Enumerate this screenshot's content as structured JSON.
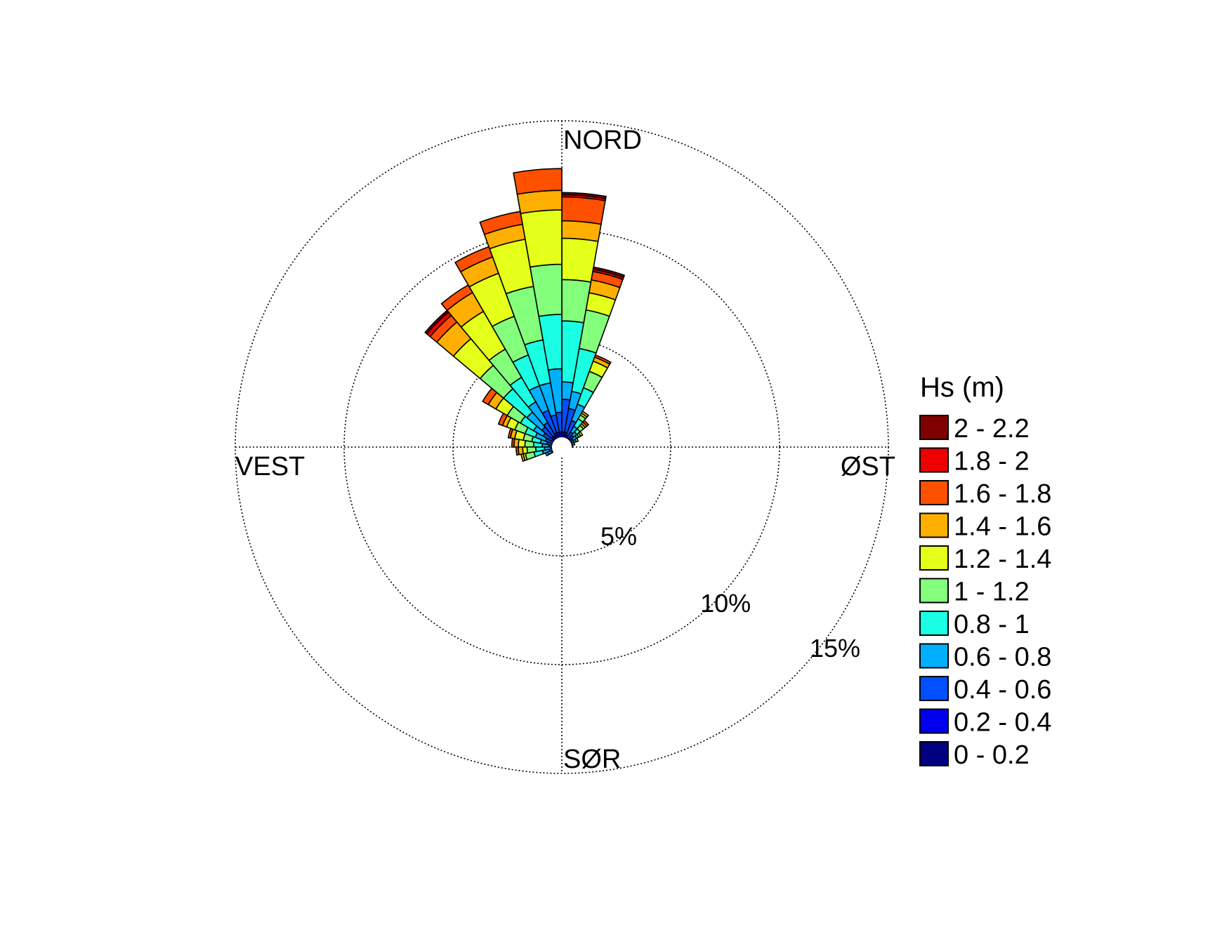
{
  "chart_data": {
    "type": "polar-stacked-bar",
    "compass": {
      "north": "NORD",
      "east": "ØST",
      "south": "SØR",
      "west": "VEST"
    },
    "rings": [
      {
        "value": 5,
        "label": "5%"
      },
      {
        "value": 10,
        "label": "10%"
      },
      {
        "value": 15,
        "label": "15%"
      }
    ],
    "rlim": [
      0,
      15
    ],
    "legend": {
      "title": "Hs (m)",
      "placement": "right",
      "items": [
        {
          "label": "2 - 2.2",
          "color": "#800000"
        },
        {
          "label": "1.8 - 2",
          "color": "#ee0000"
        },
        {
          "label": "1.6 - 1.8",
          "color": "#ff5000"
        },
        {
          "label": "1.4 - 1.6",
          "color": "#ffaf00"
        },
        {
          "label": "1.2 - 1.4",
          "color": "#e4ff1a"
        },
        {
          "label": "1 - 1.2",
          "color": "#83ff7b"
        },
        {
          "label": "0.8 - 1",
          "color": "#1affe4"
        },
        {
          "label": "0.6 - 0.8",
          "color": "#00b0ff"
        },
        {
          "label": "0.4 - 0.6",
          "color": "#0050ff"
        },
        {
          "label": "0.2 - 0.4",
          "color": "#0000ee"
        },
        {
          "label": "0 - 0.2",
          "color": "#000080"
        }
      ]
    },
    "bin_width_deg": 10,
    "series_order_note_removed": "",
    "sectors": [
      {
        "direction_deg": 5,
        "cumulative_pct": [
          0.3,
          0.7,
          2.2,
          3.0,
          5.8,
          7.7,
          9.6,
          10.4,
          11.5,
          11.6,
          11.7
        ]
      },
      {
        "direction_deg": 355,
        "cumulative_pct": [
          0.3,
          0.7,
          1.6,
          3.6,
          6.1,
          8.4,
          10.9,
          11.8,
          12.8,
          12.8,
          12.8
        ]
      },
      {
        "direction_deg": 345,
        "cumulative_pct": [
          0.3,
          0.7,
          1.5,
          3.0,
          5.0,
          7.5,
          9.7,
          10.4,
          11.0,
          11.0,
          11.0
        ]
      },
      {
        "direction_deg": 335,
        "cumulative_pct": [
          0.3,
          0.7,
          1.8,
          3.0,
          4.5,
          6.4,
          8.5,
          9.3,
          9.8,
          9.8,
          9.8
        ]
      },
      {
        "direction_deg": 325,
        "cumulative_pct": [
          0.3,
          0.6,
          1.3,
          2.4,
          3.7,
          5.2,
          7.2,
          8.2,
          8.6,
          8.6,
          8.6
        ]
      },
      {
        "direction_deg": 315,
        "cumulative_pct": [
          0.3,
          0.6,
          1.2,
          2.1,
          3.5,
          4.9,
          6.5,
          7.5,
          7.9,
          8.1,
          8.2
        ]
      },
      {
        "direction_deg": 305,
        "cumulative_pct": [
          0.2,
          0.5,
          1.0,
          1.5,
          2.2,
          2.9,
          3.5,
          3.9,
          4.2,
          4.2,
          4.2
        ]
      },
      {
        "direction_deg": 295,
        "cumulative_pct": [
          0.2,
          0.4,
          0.8,
          1.3,
          1.8,
          2.3,
          2.7,
          2.9,
          3.1,
          3.1,
          3.1
        ]
      },
      {
        "direction_deg": 285,
        "cumulative_pct": [
          0.2,
          0.4,
          0.7,
          1.0,
          1.4,
          1.8,
          2.2,
          2.4,
          2.5,
          2.5,
          2.5
        ]
      },
      {
        "direction_deg": 275,
        "cumulative_pct": [
          0.2,
          0.4,
          0.6,
          0.9,
          1.3,
          1.7,
          2.0,
          2.2,
          2.3,
          2.3,
          2.3
        ]
      },
      {
        "direction_deg": 265,
        "cumulative_pct": [
          0.1,
          0.3,
          0.5,
          0.8,
          1.2,
          1.6,
          1.8,
          2.0,
          2.1,
          2.1,
          2.1
        ]
      },
      {
        "direction_deg": 255,
        "cumulative_pct": [
          0.1,
          0.3,
          0.6,
          0.9,
          1.3,
          1.7,
          1.8,
          1.9,
          1.9,
          1.9,
          1.9
        ]
      },
      {
        "direction_deg": 245,
        "cumulative_pct": [
          0.1,
          0.3,
          0.5,
          0.7,
          0.8,
          0.8,
          0.8,
          0.8,
          0.8,
          0.8,
          0.8
        ]
      },
      {
        "direction_deg": 235,
        "cumulative_pct": [
          0.1,
          0.2,
          0.3,
          0.4,
          0.4,
          0.4,
          0.4,
          0.4,
          0.4,
          0.4,
          0.4
        ]
      },
      {
        "direction_deg": 225,
        "cumulative_pct": [
          0.1,
          0.1,
          0.2,
          0.2,
          0.2,
          0.2,
          0.2,
          0.2,
          0.2,
          0.2,
          0.2
        ]
      },
      {
        "direction_deg": 215,
        "cumulative_pct": [
          0.1,
          0.1,
          0.1,
          0.1,
          0.1,
          0.1,
          0.1,
          0.1,
          0.1,
          0.1,
          0.1
        ]
      },
      {
        "direction_deg": 15,
        "cumulative_pct": [
          0.3,
          0.7,
          1.8,
          2.6,
          4.6,
          6.4,
          7.2,
          7.8,
          8.2,
          8.3,
          8.4
        ]
      },
      {
        "direction_deg": 25,
        "cumulative_pct": [
          0.3,
          0.6,
          1.3,
          2.1,
          2.9,
          3.7,
          4.2,
          4.4,
          4.5,
          4.5,
          4.5
        ]
      },
      {
        "direction_deg": 35,
        "cumulative_pct": [
          0.3,
          0.5,
          0.8,
          1.1,
          1.5,
          1.7,
          1.8,
          1.9,
          1.9,
          1.9,
          1.9
        ]
      },
      {
        "direction_deg": 45,
        "cumulative_pct": [
          0.3,
          0.5,
          0.7,
          0.9,
          1.1,
          1.3,
          1.4,
          1.5,
          1.6,
          1.6,
          1.6
        ]
      },
      {
        "direction_deg": 55,
        "cumulative_pct": [
          0.2,
          0.4,
          0.6,
          0.8,
          0.9,
          1.0,
          1.1,
          1.1,
          1.1,
          1.1,
          1.1
        ]
      },
      {
        "direction_deg": 65,
        "cumulative_pct": [
          0.2,
          0.4,
          0.5,
          0.6,
          0.7,
          0.8,
          0.8,
          0.8,
          0.8,
          0.8,
          0.8
        ]
      },
      {
        "direction_deg": 75,
        "cumulative_pct": [
          0.2,
          0.3,
          0.4,
          0.5,
          0.6,
          0.6,
          0.6,
          0.6,
          0.6,
          0.6,
          0.6
        ]
      },
      {
        "direction_deg": 85,
        "cumulative_pct": [
          0.2,
          0.3,
          0.4,
          0.5,
          0.5,
          0.5,
          0.5,
          0.5,
          0.5,
          0.5,
          0.5
        ]
      },
      {
        "direction_deg": 95,
        "cumulative_pct": [
          0.1,
          0.3,
          0.4,
          0.4,
          0.4,
          0.4,
          0.4,
          0.4,
          0.4,
          0.4,
          0.4
        ]
      },
      {
        "direction_deg": 105,
        "cumulative_pct": [
          0.1,
          0.3,
          0.3,
          0.3,
          0.3,
          0.3,
          0.3,
          0.3,
          0.3,
          0.3,
          0.3
        ]
      },
      {
        "direction_deg": 115,
        "cumulative_pct": [
          0.1,
          0.2,
          0.2,
          0.2,
          0.2,
          0.2,
          0.2,
          0.2,
          0.2,
          0.2,
          0.2
        ]
      },
      {
        "direction_deg": 205,
        "cumulative_pct": [
          0.1,
          0.1,
          0.1,
          0.1,
          0.1,
          0.1,
          0.1,
          0.1,
          0.1,
          0.1,
          0.1
        ]
      },
      {
        "direction_deg": 195,
        "cumulative_pct": [
          0.1,
          0.1,
          0.1,
          0.1,
          0.1,
          0.1,
          0.1,
          0.1,
          0.1,
          0.1,
          0.1
        ]
      },
      {
        "direction_deg": 185,
        "cumulative_pct": [
          0.1,
          0.1,
          0.1,
          0.1,
          0.1,
          0.1,
          0.1,
          0.1,
          0.1,
          0.1,
          0.1
        ]
      }
    ],
    "grid": true
  }
}
